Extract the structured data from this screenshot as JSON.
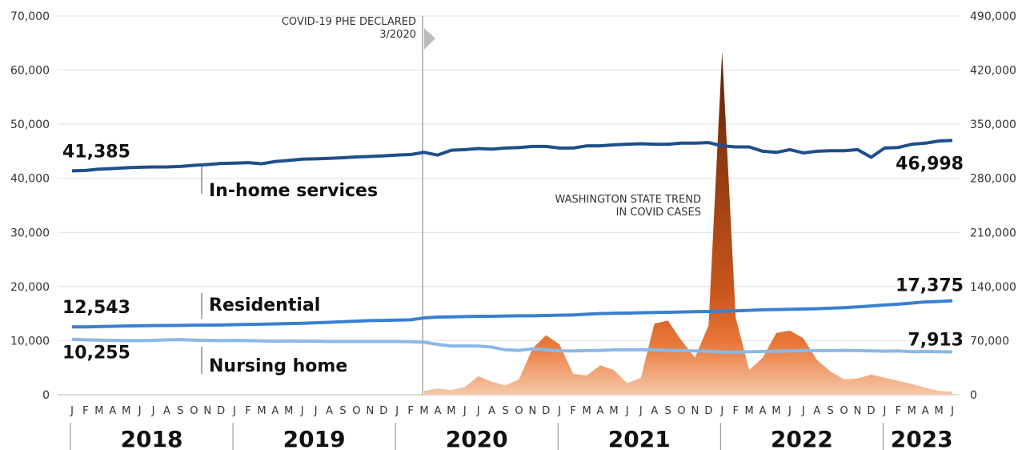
{
  "chart_data": {
    "type": "line",
    "categories": [
      "J",
      "F",
      "M",
      "A",
      "M",
      "J",
      "J",
      "A",
      "S",
      "O",
      "N",
      "D",
      "J",
      "F",
      "M",
      "A",
      "M",
      "J",
      "J",
      "A",
      "S",
      "O",
      "N",
      "D",
      "J",
      "F",
      "M",
      "A",
      "M",
      "J",
      "J",
      "A",
      "S",
      "O",
      "N",
      "D",
      "J",
      "F",
      "M",
      "A",
      "M",
      "J",
      "J",
      "A",
      "S",
      "O",
      "N",
      "D",
      "J",
      "F",
      "M",
      "A",
      "M",
      "J",
      "J",
      "A",
      "S",
      "O",
      "N",
      "D",
      "J",
      "F",
      "M",
      "A",
      "M",
      "J"
    ],
    "years": [
      "2018",
      "2019",
      "2020",
      "2021",
      "2022",
      "2023"
    ],
    "annotation": [
      "COVID-19 PHE DECLARED",
      "3/2020"
    ],
    "ylim": [
      0,
      70000
    ],
    "yticks": [
      0,
      {
        "value": 10000,
        "label": "10,000"
      },
      {
        "value": 20000,
        "label": "20,000"
      },
      {
        "value": 30000,
        "label": "30,000"
      },
      {
        "value": 40000,
        "label": "40,000"
      },
      {
        "value": 50000,
        "label": "50,000"
      },
      {
        "value": 60000,
        "label": "60,000"
      },
      {
        "value": 70000,
        "label": "70,000"
      }
    ],
    "y2lim": [
      0,
      490000
    ],
    "y2ticks": [
      0,
      {
        "value": 70000,
        "label": "70,000"
      },
      {
        "value": 140000,
        "label": "140,000"
      },
      {
        "value": 210000,
        "label": "210,000"
      },
      {
        "value": 280000,
        "label": "280,000"
      },
      {
        "value": 350000,
        "label": "350,000"
      },
      {
        "value": 420000,
        "label": "420,000"
      },
      {
        "value": 490000,
        "label": "490,000"
      }
    ],
    "grid": true,
    "series": [
      {
        "name": "In-home services",
        "color": "#1f4e8c",
        "values": [
          41385,
          41450,
          41700,
          41800,
          41950,
          42050,
          42100,
          42100,
          42200,
          42400,
          42550,
          42750,
          42800,
          42900,
          42700,
          43100,
          43300,
          43550,
          43600,
          43700,
          43800,
          43950,
          44050,
          44150,
          44300,
          44400,
          44800,
          44300,
          45200,
          45300,
          45500,
          45400,
          45600,
          45700,
          45900,
          45900,
          45600,
          45600,
          46000,
          46000,
          46200,
          46300,
          46400,
          46300,
          46300,
          46500,
          46500,
          46600,
          46000,
          45800,
          45800,
          45000,
          44800,
          45300,
          44700,
          45000,
          45100,
          45100,
          45300,
          43900,
          45600,
          45700,
          46300,
          46500,
          46900,
          46998
        ],
        "value_labels": [
          "41,385",
          null,
          null,
          null,
          null,
          null,
          null,
          null,
          null,
          null,
          null,
          null,
          null,
          null,
          null,
          null,
          null,
          null,
          null,
          null,
          null,
          null,
          null,
          null,
          null,
          null,
          null,
          null,
          null,
          null,
          null,
          null,
          null,
          null,
          null,
          null,
          null,
          null,
          null,
          null,
          null,
          null,
          null,
          null,
          null,
          null,
          null,
          null,
          null,
          null,
          null,
          null,
          null,
          null,
          null,
          null,
          null,
          null,
          null,
          null,
          null,
          null,
          null,
          null,
          null,
          "46,998"
        ]
      },
      {
        "name": "Residential",
        "color": "#3a7fd0",
        "values": [
          12543,
          12550,
          12600,
          12650,
          12700,
          12750,
          12780,
          12800,
          12820,
          12850,
          12880,
          12900,
          12950,
          13000,
          13050,
          13100,
          13150,
          13200,
          13300,
          13400,
          13500,
          13600,
          13700,
          13750,
          13800,
          13850,
          14200,
          14350,
          14400,
          14450,
          14500,
          14500,
          14550,
          14600,
          14600,
          14650,
          14700,
          14750,
          14900,
          15000,
          15050,
          15100,
          15150,
          15200,
          15250,
          15300,
          15350,
          15400,
          15450,
          15500,
          15600,
          15700,
          15750,
          15800,
          15850,
          15900,
          16000,
          16100,
          16250,
          16400,
          16600,
          16750,
          16950,
          17150,
          17250,
          17375
        ],
        "value_labels": [
          "12,543",
          null,
          null,
          null,
          null,
          null,
          null,
          null,
          null,
          null,
          null,
          null,
          null,
          null,
          null,
          null,
          null,
          null,
          null,
          null,
          null,
          null,
          null,
          null,
          null,
          null,
          null,
          null,
          null,
          null,
          null,
          null,
          null,
          null,
          null,
          null,
          null,
          null,
          null,
          null,
          null,
          null,
          null,
          null,
          null,
          null,
          null,
          null,
          null,
          null,
          null,
          null,
          null,
          null,
          null,
          null,
          null,
          null,
          null,
          null,
          null,
          null,
          null,
          null,
          null,
          "17,375"
        ]
      },
      {
        "name": "Nursing home",
        "color": "#8ab8e8",
        "values": [
          10255,
          10150,
          10100,
          10050,
          10000,
          10000,
          10050,
          10150,
          10200,
          10100,
          10050,
          10000,
          10050,
          10000,
          9950,
          9900,
          9950,
          9900,
          9900,
          9850,
          9850,
          9850,
          9850,
          9850,
          9850,
          9800,
          9700,
          9300,
          9000,
          9000,
          9000,
          8800,
          8300,
          8200,
          8500,
          8300,
          8100,
          8100,
          8150,
          8200,
          8300,
          8300,
          8300,
          8300,
          8200,
          8150,
          8100,
          8050,
          7900,
          7850,
          7950,
          8000,
          8050,
          8100,
          8150,
          8150,
          8150,
          8200,
          8150,
          8100,
          8050,
          8100,
          7950,
          8000,
          7950,
          7913
        ],
        "value_labels": [
          "10,255",
          null,
          null,
          null,
          null,
          null,
          null,
          null,
          null,
          null,
          null,
          null,
          null,
          null,
          null,
          null,
          null,
          null,
          null,
          null,
          null,
          null,
          null,
          null,
          null,
          null,
          null,
          null,
          null,
          null,
          null,
          null,
          null,
          null,
          null,
          null,
          null,
          null,
          null,
          null,
          null,
          null,
          null,
          null,
          null,
          null,
          null,
          null,
          null,
          null,
          null,
          null,
          null,
          null,
          null,
          null,
          null,
          null,
          null,
          null,
          null,
          null,
          null,
          null,
          null,
          "7,913"
        ]
      },
      {
        "name": "WASHINGTON STATE TREND IN COVID CASES",
        "type": "area",
        "axis": "y2",
        "color": "#e8773a",
        "values": [
          null,
          null,
          null,
          null,
          null,
          null,
          null,
          null,
          null,
          null,
          null,
          null,
          null,
          null,
          null,
          null,
          null,
          null,
          null,
          null,
          null,
          null,
          null,
          null,
          null,
          null,
          5000,
          8000,
          6000,
          10000,
          24000,
          17000,
          12000,
          20000,
          60000,
          77000,
          65000,
          27000,
          25000,
          38000,
          32000,
          15000,
          22000,
          92000,
          96000,
          70000,
          48000,
          90000,
          444000,
          100000,
          32000,
          48000,
          80000,
          83000,
          73000,
          45000,
          30000,
          20000,
          21000,
          26000,
          22000,
          18000,
          14000,
          9000,
          5000,
          4000
        ]
      }
    ]
  }
}
